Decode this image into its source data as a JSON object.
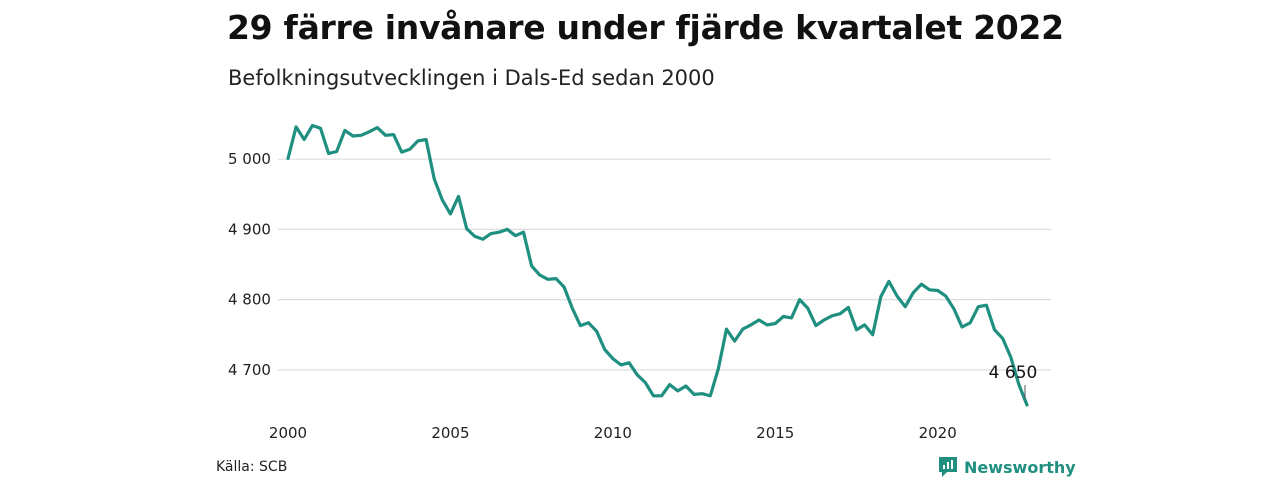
{
  "header": {
    "title": "29 färre invånare under fjärde kvartalet 2022",
    "subtitle": "Befolkningsutvecklingen i Dals-Ed sedan 2000"
  },
  "footer": {
    "source": "Källa: SCB",
    "brand": "Newsworthy"
  },
  "colors": {
    "line": "#1f8f80",
    "grid": "#dddddd",
    "brand": "#1f8f80"
  },
  "chart_data": {
    "type": "line",
    "title": "29 färre invånare under fjärde kvartalet 2022",
    "subtitle": "Befolkningsutvecklingen i Dals-Ed sedan 2000",
    "xlabel": "",
    "ylabel": "",
    "xlim": [
      2000,
      2022.75
    ],
    "ylim": [
      4640,
      5070
    ],
    "x_ticks": [
      2000,
      2005,
      2010,
      2015,
      2020
    ],
    "x_tick_labels": [
      "2000",
      "2005",
      "2010",
      "2015",
      "2020"
    ],
    "y_ticks": [
      4700,
      4800,
      4900,
      5000
    ],
    "y_tick_labels": [
      "4 700",
      "4 800",
      "4 900",
      "5 000"
    ],
    "grid": true,
    "legend": "none",
    "end_label": "4 650",
    "series": [
      {
        "values": [
          [
            2000.0,
            5001
          ],
          [
            2000.25,
            5046
          ],
          [
            2000.5,
            5028
          ],
          [
            2000.75,
            5048
          ],
          [
            2001.0,
            5044
          ],
          [
            2001.25,
            5008
          ],
          [
            2001.5,
            5011
          ],
          [
            2001.75,
            5041
          ],
          [
            2002.0,
            5033
          ],
          [
            2002.25,
            5034
          ],
          [
            2002.5,
            5039
          ],
          [
            2002.75,
            5045
          ],
          [
            2003.0,
            5034
          ],
          [
            2003.25,
            5035
          ],
          [
            2003.5,
            5010
          ],
          [
            2003.75,
            5014
          ],
          [
            2004.0,
            5026
          ],
          [
            2004.25,
            5028
          ],
          [
            2004.5,
            4972
          ],
          [
            2004.75,
            4942
          ],
          [
            2005.0,
            4922
          ],
          [
            2005.25,
            4947
          ],
          [
            2005.5,
            4901
          ],
          [
            2005.75,
            4890
          ],
          [
            2006.0,
            4886
          ],
          [
            2006.25,
            4894
          ],
          [
            2006.5,
            4896
          ],
          [
            2006.75,
            4900
          ],
          [
            2007.0,
            4891
          ],
          [
            2007.25,
            4896
          ],
          [
            2007.5,
            4848
          ],
          [
            2007.75,
            4835
          ],
          [
            2008.0,
            4829
          ],
          [
            2008.25,
            4830
          ],
          [
            2008.5,
            4818
          ],
          [
            2008.75,
            4788
          ],
          [
            2009.0,
            4763
          ],
          [
            2009.25,
            4767
          ],
          [
            2009.5,
            4755
          ],
          [
            2009.75,
            4729
          ],
          [
            2010.0,
            4716
          ],
          [
            2010.25,
            4707
          ],
          [
            2010.5,
            4710
          ],
          [
            2010.75,
            4693
          ],
          [
            2011.0,
            4682
          ],
          [
            2011.25,
            4663
          ],
          [
            2011.5,
            4663
          ],
          [
            2011.75,
            4679
          ],
          [
            2012.0,
            4670
          ],
          [
            2012.25,
            4677
          ],
          [
            2012.5,
            4665
          ],
          [
            2012.75,
            4666
          ],
          [
            2013.0,
            4663
          ],
          [
            2013.25,
            4702
          ],
          [
            2013.5,
            4758
          ],
          [
            2013.75,
            4741
          ],
          [
            2014.0,
            4758
          ],
          [
            2014.25,
            4764
          ],
          [
            2014.5,
            4771
          ],
          [
            2014.75,
            4764
          ],
          [
            2015.0,
            4766
          ],
          [
            2015.25,
            4776
          ],
          [
            2015.5,
            4774
          ],
          [
            2015.75,
            4800
          ],
          [
            2016.0,
            4788
          ],
          [
            2016.25,
            4763
          ],
          [
            2016.5,
            4771
          ],
          [
            2016.75,
            4777
          ],
          [
            2017.0,
            4780
          ],
          [
            2017.25,
            4789
          ],
          [
            2017.5,
            4757
          ],
          [
            2017.75,
            4764
          ],
          [
            2018.0,
            4750
          ],
          [
            2018.25,
            4804
          ],
          [
            2018.5,
            4826
          ],
          [
            2018.75,
            4805
          ],
          [
            2019.0,
            4790
          ],
          [
            2019.25,
            4810
          ],
          [
            2019.5,
            4822
          ],
          [
            2019.75,
            4814
          ],
          [
            2020.0,
            4813
          ],
          [
            2020.25,
            4805
          ],
          [
            2020.5,
            4787
          ],
          [
            2020.75,
            4761
          ],
          [
            2021.0,
            4767
          ],
          [
            2021.25,
            4790
          ],
          [
            2021.5,
            4792
          ],
          [
            2021.75,
            4757
          ],
          [
            2022.0,
            4745
          ],
          [
            2022.25,
            4718
          ],
          [
            2022.5,
            4679
          ],
          [
            2022.75,
            4650
          ]
        ]
      }
    ]
  }
}
